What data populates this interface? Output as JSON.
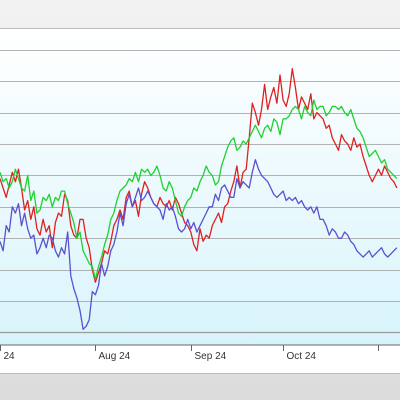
{
  "colors": {
    "frame": "#e6e6e6",
    "grid": "#9a9a9a",
    "plot_top": "#ffffff",
    "plot_bottom": "#d8f4fb",
    "axis": "#666666"
  },
  "chart_data": {
    "type": "line",
    "title": "",
    "xlabel": "",
    "ylabel": "",
    "grid": true,
    "legend": "none",
    "x": [
      0,
      1,
      2,
      3,
      4,
      5,
      6,
      7,
      8,
      9,
      10,
      11,
      12,
      13,
      14,
      15,
      16,
      17,
      18,
      19,
      20,
      21,
      22,
      23,
      24,
      25,
      26,
      27,
      28,
      29,
      30,
      31,
      32,
      33,
      34,
      35,
      36,
      37,
      38,
      39,
      40,
      41,
      42,
      43,
      44,
      45,
      46,
      47,
      48,
      49,
      50,
      51,
      52,
      53,
      54,
      55,
      56,
      57,
      58,
      59,
      60,
      61,
      62,
      63,
      64,
      65,
      66,
      67,
      68,
      69,
      70,
      71,
      72,
      73,
      74,
      75,
      76,
      77,
      78,
      79,
      80,
      81,
      82,
      83,
      84,
      85,
      86,
      87,
      88,
      89,
      90,
      91,
      92,
      93,
      94,
      95,
      96,
      97,
      98,
      99,
      100,
      101,
      102,
      103,
      104,
      105,
      106,
      107,
      108,
      109,
      110,
      111,
      112,
      113,
      114,
      115,
      116,
      117,
      118,
      119,
      120,
      121,
      122,
      123,
      124,
      125,
      126,
      127,
      128,
      129
    ],
    "xlim": [
      0,
      130
    ],
    "ylim": [
      0,
      10
    ],
    "x_ticks": [
      {
        "x": 0,
        "label": "24"
      },
      {
        "x": 31,
        "label": "Aug 24"
      },
      {
        "x": 62,
        "label": "Sep 24"
      },
      {
        "x": 92,
        "label": "Oct 24"
      },
      {
        "x": 123,
        "label": ""
      }
    ],
    "y_gridlines": [
      0.4,
      1.4,
      2.4,
      3.4,
      4.4,
      5.4,
      6.4,
      7.4,
      8.4,
      9.4
    ],
    "series": [
      {
        "color": "#e02020",
        "values": [
          5.3,
          5.0,
          4.7,
          5.1,
          5.5,
          5.2,
          5.6,
          5.0,
          4.3,
          4.6,
          4.0,
          4.4,
          3.7,
          3.5,
          4.0,
          3.6,
          3.8,
          3.1,
          3.9,
          4.2,
          4.1,
          4.8,
          4.6,
          3.8,
          3.5,
          3.4,
          4.0,
          4.0,
          3.4,
          3.1,
          2.4,
          2.0,
          2.3,
          2.6,
          3.0,
          2.9,
          3.3,
          3.8,
          4.0,
          4.3,
          4.0,
          4.7,
          4.9,
          4.4,
          4.6,
          4.1,
          4.8,
          5.2,
          5.0,
          4.7,
          4.5,
          4.4,
          4.7,
          4.5,
          4.4,
          4.6,
          4.3,
          4.7,
          4.5,
          4.2,
          3.9,
          3.8,
          3.6,
          3.2,
          3.0,
          3.7,
          3.3,
          3.5,
          3.4,
          3.8,
          4.0,
          4.2,
          3.9,
          4.4,
          4.5,
          4.9,
          5.2,
          5.7,
          5.0,
          5.5,
          5.6,
          6.6,
          7.7,
          7.4,
          7.0,
          7.5,
          8.3,
          7.5,
          7.9,
          8.2,
          7.7,
          8.6,
          7.8,
          7.6,
          8.0,
          8.8,
          8.2,
          7.5,
          7.9,
          7.7,
          7.5,
          8.0,
          7.2,
          7.4,
          7.3,
          7.2,
          6.9,
          7.0,
          6.6,
          6.4,
          6.2,
          6.7,
          6.5,
          6.4,
          6.2,
          6.6,
          6.3,
          6.4,
          6.0,
          5.7,
          5.4,
          5.2,
          5.4,
          5.6,
          5.4,
          5.7,
          5.5,
          5.3,
          5.2,
          5.0
        ]
      },
      {
        "color": "#20d030",
        "values": [
          5.5,
          5.2,
          5.3,
          5.0,
          5.2,
          5.6,
          5.3,
          5.0,
          4.9,
          5.4,
          4.6,
          4.9,
          4.2,
          4.3,
          4.7,
          4.6,
          4.8,
          4.4,
          4.7,
          4.6,
          4.9,
          4.9,
          4.5,
          4.2,
          3.9,
          3.4,
          3.6,
          3.0,
          2.8,
          2.6,
          2.5,
          2.1,
          2.5,
          2.8,
          3.2,
          3.5,
          4.0,
          4.2,
          4.6,
          4.9,
          5.0,
          5.1,
          5.3,
          5.2,
          5.5,
          5.2,
          5.6,
          5.5,
          5.6,
          5.4,
          5.5,
          5.7,
          5.4,
          5.0,
          4.9,
          5.2,
          5.0,
          4.6,
          4.2,
          4.1,
          4.4,
          4.6,
          4.7,
          5.0,
          4.9,
          5.2,
          5.4,
          5.7,
          5.5,
          5.4,
          5.1,
          5.2,
          5.7,
          6.0,
          6.3,
          6.5,
          6.6,
          6.2,
          6.3,
          6.5,
          6.4,
          6.6,
          6.8,
          7.0,
          6.8,
          6.6,
          6.9,
          7.0,
          6.8,
          7.2,
          7.1,
          6.7,
          7.2,
          7.2,
          7.3,
          7.5,
          7.6,
          7.5,
          7.2,
          7.6,
          7.4,
          7.3,
          7.8,
          7.5,
          7.6,
          7.6,
          7.3,
          7.4,
          7.6,
          7.6,
          7.5,
          7.6,
          7.4,
          7.3,
          7.5,
          7.2,
          6.9,
          6.8,
          6.6,
          6.3,
          6.0,
          6.1,
          6.2,
          6.0,
          5.8,
          5.9,
          5.6,
          5.5,
          5.4,
          5.3
        ]
      },
      {
        "color": "#5a50d0",
        "values": [
          3.3,
          3.0,
          3.8,
          3.6,
          4.4,
          4.2,
          4.5,
          3.8,
          4.2,
          3.7,
          3.4,
          3.5,
          2.9,
          3.1,
          3.4,
          3.1,
          3.5,
          3.4,
          3.0,
          2.8,
          3.1,
          2.9,
          3.6,
          2.2,
          1.8,
          1.5,
          1.1,
          0.5,
          0.6,
          0.8,
          1.7,
          1.6,
          1.9,
          2.6,
          2.2,
          2.5,
          3.0,
          3.2,
          3.6,
          4.2,
          3.8,
          4.5,
          4.8,
          4.4,
          4.7,
          5.0,
          4.6,
          4.7,
          4.9,
          4.7,
          4.5,
          4.4,
          4.3,
          4.0,
          4.5,
          4.3,
          4.4,
          4.1,
          3.7,
          3.6,
          3.7,
          4.0,
          3.7,
          3.9,
          3.6,
          3.8,
          4.0,
          4.2,
          4.4,
          4.4,
          4.8,
          4.6,
          5.0,
          5.1,
          4.9,
          4.7,
          4.7,
          5.3,
          5.0,
          5.2,
          5.1,
          5.0,
          5.5,
          5.9,
          5.6,
          5.4,
          5.3,
          5.2,
          5.0,
          4.8,
          4.7,
          4.8,
          4.9,
          4.6,
          4.7,
          4.6,
          4.7,
          4.5,
          4.6,
          4.4,
          4.3,
          4.4,
          4.2,
          4.4,
          4.0,
          4.0,
          3.8,
          3.5,
          3.7,
          3.6,
          3.4,
          3.4,
          3.6,
          3.5,
          3.3,
          3.2,
          3.0,
          2.9,
          2.8,
          2.9,
          3.0,
          2.8,
          2.9,
          3.0,
          3.1,
          2.9,
          2.8,
          2.9,
          3.0,
          3.1
        ]
      }
    ]
  }
}
